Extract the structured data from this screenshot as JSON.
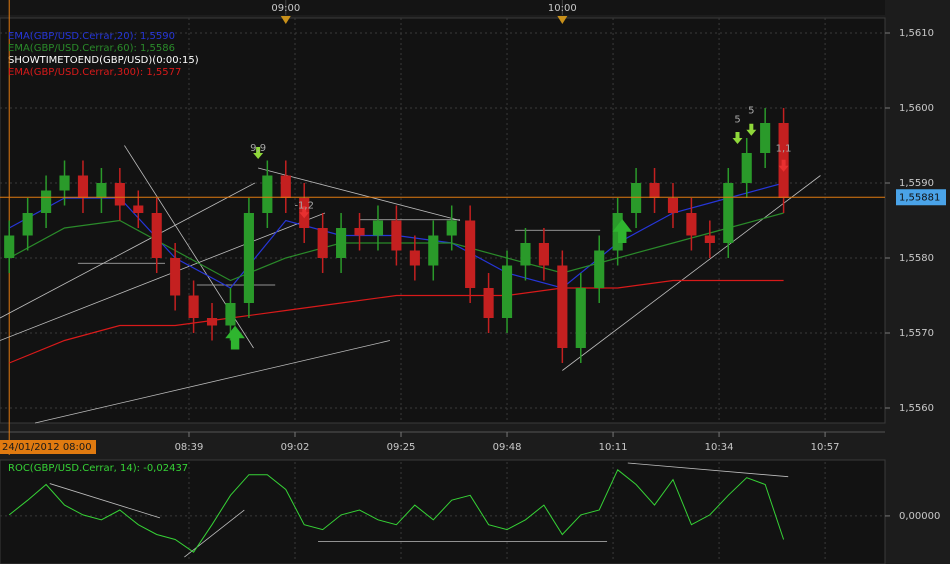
{
  "chart_data": [
    {
      "type": "candlestick",
      "info_text": "SHOWTIMETOEND(GBP/USD)(0:00:15)",
      "xlim": [
        -2,
        190
      ],
      "ylim": [
        1.5558,
        1.5612
      ],
      "yticks": [
        {
          "value": 1.561,
          "label": "1,5610"
        },
        {
          "value": 1.56,
          "label": "1,5600"
        },
        {
          "value": 1.559,
          "label": "1,5590"
        },
        {
          "value": 1.558,
          "label": "1,5580"
        },
        {
          "value": 1.557,
          "label": "1,5570"
        },
        {
          "value": 1.556,
          "label": "1,5560"
        }
      ],
      "xticks": [
        {
          "value": 39,
          "label": "08:39"
        },
        {
          "value": 62,
          "label": "09:02"
        },
        {
          "value": 85,
          "label": "09:25"
        },
        {
          "value": 108,
          "label": "09:48"
        },
        {
          "value": 131,
          "label": "10:11"
        },
        {
          "value": 154,
          "label": "10:34"
        },
        {
          "value": 177,
          "label": "10:57"
        }
      ],
      "top_markers": [
        {
          "value": 60,
          "label": "09:00"
        },
        {
          "value": 120,
          "label": "10:00"
        }
      ],
      "session_start": {
        "value": 0,
        "label": "24/01/2012 08:00"
      },
      "current_price": {
        "value": 1.55881,
        "label": "1,55881",
        "color": "#e07a10"
      },
      "grid": true,
      "candles": {
        "up_color": "#2a9a2a",
        "down_color": "#c42020",
        "x": [
          0,
          4,
          8,
          12,
          16,
          20,
          24,
          28,
          32,
          36,
          40,
          44,
          48,
          52,
          56,
          60,
          64,
          68,
          72,
          76,
          80,
          84,
          88,
          92,
          96,
          100,
          104,
          108,
          112,
          116,
          120,
          124,
          128,
          132,
          136,
          140,
          144,
          148,
          152,
          156,
          160,
          164,
          168
        ],
        "open": [
          1.558,
          1.5583,
          1.5586,
          1.5589,
          1.5591,
          1.5588,
          1.559,
          1.5587,
          1.5586,
          1.558,
          1.5575,
          1.5572,
          1.5571,
          1.5574,
          1.5586,
          1.5591,
          1.5588,
          1.5584,
          1.558,
          1.5584,
          1.5583,
          1.5585,
          1.5581,
          1.5579,
          1.5583,
          1.5585,
          1.5576,
          1.5572,
          1.5579,
          1.5582,
          1.5579,
          1.5568,
          1.5576,
          1.5581,
          1.5586,
          1.559,
          1.5588,
          1.5586,
          1.5583,
          1.5582,
          1.559,
          1.5594,
          1.5598
        ],
        "high": [
          1.5585,
          1.5588,
          1.5591,
          1.5593,
          1.5593,
          1.5592,
          1.5592,
          1.5589,
          1.5588,
          1.5582,
          1.5577,
          1.5574,
          1.5576,
          1.5588,
          1.5593,
          1.5593,
          1.559,
          1.5586,
          1.5586,
          1.5586,
          1.5587,
          1.5587,
          1.5583,
          1.5585,
          1.5587,
          1.5587,
          1.5578,
          1.5581,
          1.5584,
          1.5584,
          1.5581,
          1.5578,
          1.5583,
          1.5588,
          1.5592,
          1.5592,
          1.559,
          1.5588,
          1.5585,
          1.5592,
          1.5596,
          1.56,
          1.56
        ],
        "low": [
          1.5578,
          1.5581,
          1.5584,
          1.5587,
          1.5586,
          1.5586,
          1.5585,
          1.5584,
          1.5578,
          1.5573,
          1.557,
          1.5569,
          1.5569,
          1.5572,
          1.5584,
          1.5586,
          1.5582,
          1.5578,
          1.5578,
          1.5581,
          1.5581,
          1.5579,
          1.5577,
          1.5577,
          1.5581,
          1.5574,
          1.557,
          1.557,
          1.5577,
          1.5577,
          1.5566,
          1.5566,
          1.5574,
          1.5579,
          1.5584,
          1.5586,
          1.5584,
          1.5581,
          1.558,
          1.558,
          1.5588,
          1.5592,
          1.5586
        ],
        "close": [
          1.5583,
          1.5586,
          1.5589,
          1.5591,
          1.5588,
          1.559,
          1.5587,
          1.5586,
          1.558,
          1.5575,
          1.5572,
          1.5571,
          1.5574,
          1.5586,
          1.5591,
          1.5588,
          1.5584,
          1.558,
          1.5584,
          1.5583,
          1.5585,
          1.5581,
          1.5579,
          1.5583,
          1.5585,
          1.5576,
          1.5572,
          1.5579,
          1.5582,
          1.5579,
          1.5568,
          1.5576,
          1.5581,
          1.5586,
          1.559,
          1.5588,
          1.5586,
          1.5583,
          1.5582,
          1.559,
          1.5594,
          1.5598,
          1.5588
        ]
      },
      "series": [
        {
          "name": "EMA(GBP/USD.Cerrar,20): 1,5590",
          "color": "#2636d8",
          "x": [
            0,
            12,
            24,
            36,
            48,
            60,
            72,
            84,
            96,
            108,
            120,
            132,
            144,
            156,
            168
          ],
          "values": [
            1.5584,
            1.5588,
            1.5588,
            1.558,
            1.5576,
            1.5585,
            1.5583,
            1.5583,
            1.5582,
            1.5578,
            1.5576,
            1.5582,
            1.5586,
            1.5588,
            1.559
          ]
        },
        {
          "name": "EMA(GBP/USD.Cerrar,60): 1,5586",
          "color": "#2a8a2a",
          "x": [
            0,
            12,
            24,
            36,
            48,
            60,
            72,
            84,
            96,
            108,
            120,
            132,
            144,
            156,
            168
          ],
          "values": [
            1.558,
            1.5584,
            1.5585,
            1.5581,
            1.5577,
            1.558,
            1.5582,
            1.5582,
            1.5582,
            1.558,
            1.5578,
            1.558,
            1.5582,
            1.5584,
            1.5586
          ]
        },
        {
          "name": "EMA(GBP/USD.Cerrar,300): 1,5577",
          "color": "#d81a1a",
          "x": [
            0,
            12,
            24,
            36,
            48,
            60,
            72,
            84,
            96,
            108,
            120,
            132,
            144,
            156,
            168
          ],
          "values": [
            1.5566,
            1.5569,
            1.5571,
            1.5571,
            1.5572,
            1.5573,
            1.5574,
            1.5575,
            1.5575,
            1.5575,
            1.5576,
            1.5576,
            1.5577,
            1.5577,
            1.5577
          ]
        }
      ],
      "annotations": [
        {
          "text": "9,9",
          "x": 54,
          "y": 1.55947
        },
        {
          "text": "-1,2",
          "x": 64,
          "y": 1.5587
        },
        {
          "text": "5",
          "x": 158,
          "y": 1.55985
        },
        {
          "text": "5",
          "x": 161,
          "y": 1.55997
        },
        {
          "text": "1,1",
          "x": 168,
          "y": 1.55946
        }
      ],
      "signals": [
        {
          "x": 49,
          "y": 1.55693,
          "direction": "up",
          "color": "#2fb52f"
        },
        {
          "x": 133,
          "y": 1.55835,
          "direction": "up",
          "color": "#2fb52f"
        },
        {
          "x": 54,
          "y": 1.5594,
          "direction": "down",
          "color": "#8fd83a"
        },
        {
          "x": 158,
          "y": 1.5596,
          "direction": "down",
          "color": "#8fd83a"
        },
        {
          "x": 161,
          "y": 1.55971,
          "direction": "down",
          "color": "#8fd83a"
        },
        {
          "x": 64,
          "y": 1.55861,
          "direction": "down",
          "color": "#e83030"
        },
        {
          "x": 168,
          "y": 1.55923,
          "direction": "down",
          "color": "#e83030"
        }
      ],
      "trendlines": [
        {
          "x": [
            25,
            53
          ],
          "y": [
            1.5595,
            1.5568
          ]
        },
        {
          "x": [
            -2,
            68.5
          ],
          "y": [
            1.5569,
            1.5586
          ]
        },
        {
          "x": [
            -2,
            53.3
          ],
          "y": [
            1.5572,
            1.559
          ]
        },
        {
          "x": [
            5.6,
            82.6
          ],
          "y": [
            1.5558,
            1.5569
          ]
        },
        {
          "x": [
            54,
            97.8
          ],
          "y": [
            1.5592,
            1.5585
          ]
        },
        {
          "x": [
            120,
            176
          ],
          "y": [
            1.5565,
            1.5591
          ]
        },
        {
          "x": [
            14.9,
            33.8
          ],
          "y": [
            1.55793,
            1.55793
          ]
        },
        {
          "x": [
            40.7,
            57.7
          ],
          "y": [
            1.55764,
            1.55764
          ]
        },
        {
          "x": [
            76.1,
            97.8
          ],
          "y": [
            1.55851,
            1.55851
          ]
        },
        {
          "x": [
            109.7,
            128.2
          ],
          "y": [
            1.55837,
            1.55837
          ]
        }
      ]
    },
    {
      "type": "line",
      "xlim": [
        -2,
        190
      ],
      "ylim": [
        -0.047,
        0.055
      ],
      "yticks": [
        {
          "value": 0,
          "label": "0,00000"
        }
      ],
      "xticks": [
        39,
        62,
        85,
        108,
        131,
        154,
        177
      ],
      "series": [
        {
          "name": "ROC(GBP/USD.Cerrar, 14): -0,02437",
          "color": "#36d236",
          "x": [
            0,
            4,
            8,
            12,
            16,
            20,
            24,
            28,
            32,
            36,
            40,
            44,
            48,
            52,
            56,
            60,
            64,
            68,
            72,
            76,
            80,
            84,
            88,
            92,
            96,
            100,
            104,
            108,
            112,
            116,
            120,
            124,
            128,
            132,
            136,
            140,
            144,
            148,
            152,
            156,
            160,
            164,
            168
          ],
          "values": [
            0.001,
            0.016,
            0.032,
            0.011,
            0.001,
            -0.004,
            0.006,
            -0.009,
            -0.019,
            -0.024,
            -0.037,
            -0.009,
            0.021,
            0.042,
            0.042,
            0.027,
            -0.009,
            -0.014,
            0.001,
            0.006,
            -0.004,
            -0.009,
            0.011,
            -0.004,
            0.016,
            0.021,
            -0.009,
            -0.014,
            -0.004,
            0.011,
            -0.019,
            0.001,
            0.006,
            0.047,
            0.032,
            0.011,
            0.037,
            -0.009,
            0.001,
            0.021,
            0.039,
            0.032,
            -0.024
          ]
        }
      ],
      "trendlines": [
        {
          "x": [
            8.8,
            32.7
          ],
          "y": [
            0.033,
            -0.002
          ]
        },
        {
          "x": [
            38,
            51
          ],
          "y": [
            -0.042,
            0.006
          ]
        },
        {
          "x": [
            67,
            129.7
          ],
          "y": [
            -0.026,
            -0.026
          ]
        },
        {
          "x": [
            134.2,
            169
          ],
          "y": [
            0.054,
            0.04
          ]
        }
      ]
    }
  ]
}
